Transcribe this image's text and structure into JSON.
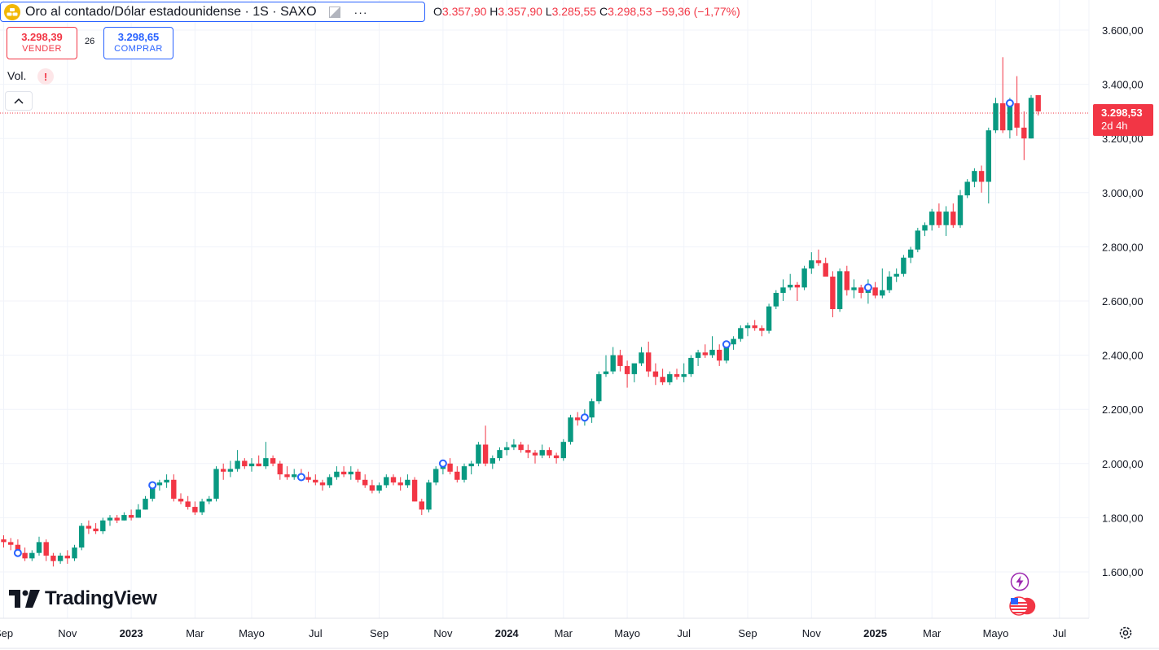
{
  "header": {
    "symbol_title": "Oro al contado/Dólar estadounidense · 1S · SAXO",
    "more_label": "···",
    "ohlc": {
      "o_key": "O",
      "o_val": "3.357,90",
      "h_key": "H",
      "h_val": "3.357,90",
      "l_key": "L",
      "l_val": "3.285,55",
      "c_key": "C",
      "c_val": "3.298,53",
      "change": "−59,36 (−1,77%)"
    }
  },
  "trade": {
    "sell_price": "3.298,39",
    "sell_label": "VENDER",
    "spread": "26",
    "buy_price": "3.298,65",
    "buy_label": "COMPRAR"
  },
  "volume": {
    "label": "Vol.",
    "warning": "!"
  },
  "last_price": {
    "price": "3.298,53",
    "countdown": "2d 4h"
  },
  "branding": {
    "logo_text": "TradingView"
  },
  "colors": {
    "up": "#089981",
    "down": "#f23645",
    "grid": "#f0f3fa",
    "accent": "#2962ff"
  },
  "chart_data": {
    "type": "candlestick",
    "interval": "1S",
    "y_range": [
      1460,
      3660
    ],
    "y_ticks": [
      {
        "value": 1600,
        "label": "1.600,00"
      },
      {
        "value": 1800,
        "label": "1.800,00"
      },
      {
        "value": 2000,
        "label": "2.000,00"
      },
      {
        "value": 2200,
        "label": "2.200,00"
      },
      {
        "value": 2400,
        "label": "2.400,00"
      },
      {
        "value": 2600,
        "label": "2.600,00"
      },
      {
        "value": 2800,
        "label": "2.800,00"
      },
      {
        "value": 3000,
        "label": "3.000,00"
      },
      {
        "value": 3200,
        "label": "3.200,00"
      },
      {
        "value": 3400,
        "label": "3.400,00"
      },
      {
        "value": 3600,
        "label": "3.600,00"
      }
    ],
    "x_ticks": [
      {
        "week": 0,
        "label": "Sep",
        "year": false
      },
      {
        "week": 9,
        "label": "Nov",
        "year": false
      },
      {
        "week": 18,
        "label": "2023",
        "year": true
      },
      {
        "week": 27,
        "label": "Mar",
        "year": false
      },
      {
        "week": 35,
        "label": "Mayo",
        "year": false
      },
      {
        "week": 44,
        "label": "Jul",
        "year": false
      },
      {
        "week": 53,
        "label": "Sep",
        "year": false
      },
      {
        "week": 62,
        "label": "Nov",
        "year": false
      },
      {
        "week": 71,
        "label": "2024",
        "year": true
      },
      {
        "week": 79,
        "label": "Mar",
        "year": false
      },
      {
        "week": 88,
        "label": "Mayo",
        "year": false
      },
      {
        "week": 96,
        "label": "Jul",
        "year": false
      },
      {
        "week": 105,
        "label": "Sep",
        "year": false
      },
      {
        "week": 114,
        "label": "Nov",
        "year": false
      },
      {
        "week": 123,
        "label": "2025",
        "year": true
      },
      {
        "week": 131,
        "label": "Mar",
        "year": false
      },
      {
        "week": 140,
        "label": "Mayo",
        "year": false
      },
      {
        "week": 149,
        "label": "Jul",
        "year": false
      }
    ],
    "candles": [
      [
        1720,
        1735,
        1690,
        1710
      ],
      [
        1710,
        1725,
        1680,
        1700
      ],
      [
        1700,
        1720,
        1660,
        1670
      ],
      [
        1670,
        1690,
        1640,
        1650
      ],
      [
        1650,
        1680,
        1640,
        1670
      ],
      [
        1670,
        1730,
        1660,
        1710
      ],
      [
        1710,
        1720,
        1640,
        1660
      ],
      [
        1660,
        1670,
        1620,
        1640
      ],
      [
        1640,
        1670,
        1630,
        1660
      ],
      [
        1660,
        1680,
        1630,
        1650
      ],
      [
        1650,
        1700,
        1640,
        1690
      ],
      [
        1690,
        1780,
        1680,
        1770
      ],
      [
        1770,
        1790,
        1740,
        1760
      ],
      [
        1760,
        1780,
        1740,
        1750
      ],
      [
        1750,
        1800,
        1740,
        1790
      ],
      [
        1790,
        1810,
        1770,
        1800
      ],
      [
        1800,
        1810,
        1780,
        1790
      ],
      [
        1790,
        1820,
        1790,
        1810
      ],
      [
        1810,
        1830,
        1790,
        1800
      ],
      [
        1800,
        1850,
        1800,
        1830
      ],
      [
        1830,
        1880,
        1830,
        1870
      ],
      [
        1870,
        1930,
        1860,
        1920
      ],
      [
        1920,
        1940,
        1900,
        1930
      ],
      [
        1930,
        1960,
        1910,
        1940
      ],
      [
        1940,
        1960,
        1860,
        1870
      ],
      [
        1870,
        1890,
        1850,
        1860
      ],
      [
        1860,
        1880,
        1830,
        1840
      ],
      [
        1840,
        1860,
        1810,
        1820
      ],
      [
        1820,
        1870,
        1810,
        1860
      ],
      [
        1860,
        1880,
        1850,
        1870
      ],
      [
        1870,
        1990,
        1860,
        1980
      ],
      [
        1980,
        2000,
        1940,
        1970
      ],
      [
        1970,
        2010,
        1950,
        1980
      ],
      [
        1980,
        2050,
        1970,
        2010
      ],
      [
        2010,
        2020,
        1980,
        1990
      ],
      [
        1990,
        2020,
        1970,
        2000
      ],
      [
        2000,
        2030,
        1990,
        1990
      ],
      [
        1990,
        2080,
        1980,
        2020
      ],
      [
        2020,
        2030,
        1990,
        2000
      ],
      [
        2000,
        2010,
        1940,
        1960
      ],
      [
        1960,
        1990,
        1940,
        1950
      ],
      [
        1950,
        1980,
        1940,
        1960
      ],
      [
        1960,
        1980,
        1940,
        1950
      ],
      [
        1950,
        1970,
        1930,
        1940
      ],
      [
        1940,
        1960,
        1920,
        1930
      ],
      [
        1930,
        1940,
        1900,
        1920
      ],
      [
        1920,
        1960,
        1910,
        1950
      ],
      [
        1950,
        1990,
        1940,
        1970
      ],
      [
        1970,
        1990,
        1950,
        1960
      ],
      [
        1960,
        1990,
        1940,
        1970
      ],
      [
        1970,
        1980,
        1930,
        1940
      ],
      [
        1940,
        1960,
        1910,
        1920
      ],
      [
        1920,
        1940,
        1890,
        1900
      ],
      [
        1900,
        1930,
        1890,
        1920
      ],
      [
        1920,
        1960,
        1910,
        1950
      ],
      [
        1950,
        1960,
        1920,
        1930
      ],
      [
        1930,
        1950,
        1900,
        1920
      ],
      [
        1920,
        1960,
        1910,
        1940
      ],
      [
        1940,
        1950,
        1860,
        1860
      ],
      [
        1860,
        1870,
        1810,
        1830
      ],
      [
        1830,
        1940,
        1820,
        1930
      ],
      [
        1930,
        1990,
        1920,
        1980
      ],
      [
        1980,
        2010,
        1960,
        2000
      ],
      [
        2000,
        2020,
        1960,
        1970
      ],
      [
        1970,
        1990,
        1930,
        1940
      ],
      [
        1940,
        2000,
        1930,
        1990
      ],
      [
        1990,
        2010,
        1960,
        2000
      ],
      [
        2000,
        2080,
        1990,
        2070
      ],
      [
        2070,
        2140,
        1990,
        2000
      ],
      [
        2000,
        2030,
        1980,
        2020
      ],
      [
        2020,
        2060,
        2010,
        2050
      ],
      [
        2050,
        2080,
        2030,
        2060
      ],
      [
        2060,
        2090,
        2050,
        2070
      ],
      [
        2070,
        2080,
        2040,
        2050
      ],
      [
        2050,
        2070,
        2020,
        2040
      ],
      [
        2040,
        2050,
        2000,
        2030
      ],
      [
        2030,
        2070,
        2020,
        2050
      ],
      [
        2050,
        2060,
        2020,
        2030
      ],
      [
        2030,
        2040,
        2000,
        2020
      ],
      [
        2020,
        2090,
        2010,
        2080
      ],
      [
        2080,
        2180,
        2070,
        2170
      ],
      [
        2170,
        2190,
        2140,
        2160
      ],
      [
        2160,
        2200,
        2140,
        2170
      ],
      [
        2170,
        2240,
        2150,
        2230
      ],
      [
        2230,
        2340,
        2220,
        2330
      ],
      [
        2330,
        2400,
        2320,
        2340
      ],
      [
        2340,
        2430,
        2330,
        2400
      ],
      [
        2400,
        2420,
        2340,
        2360
      ],
      [
        2360,
        2380,
        2280,
        2330
      ],
      [
        2330,
        2360,
        2300,
        2370
      ],
      [
        2370,
        2430,
        2360,
        2410
      ],
      [
        2410,
        2450,
        2320,
        2340
      ],
      [
        2340,
        2370,
        2290,
        2320
      ],
      [
        2320,
        2350,
        2290,
        2300
      ],
      [
        2300,
        2340,
        2290,
        2330
      ],
      [
        2330,
        2350,
        2310,
        2320
      ],
      [
        2320,
        2370,
        2300,
        2330
      ],
      [
        2330,
        2400,
        2320,
        2390
      ],
      [
        2390,
        2420,
        2360,
        2410
      ],
      [
        2410,
        2440,
        2390,
        2400
      ],
      [
        2400,
        2470,
        2390,
        2420
      ],
      [
        2420,
        2440,
        2360,
        2380
      ],
      [
        2380,
        2450,
        2370,
        2440
      ],
      [
        2440,
        2470,
        2420,
        2460
      ],
      [
        2460,
        2510,
        2450,
        2500
      ],
      [
        2500,
        2520,
        2470,
        2510
      ],
      [
        2510,
        2530,
        2490,
        2500
      ],
      [
        2500,
        2510,
        2470,
        2490
      ],
      [
        2490,
        2590,
        2480,
        2580
      ],
      [
        2580,
        2640,
        2570,
        2630
      ],
      [
        2630,
        2680,
        2600,
        2650
      ],
      [
        2650,
        2700,
        2640,
        2660
      ],
      [
        2660,
        2670,
        2600,
        2650
      ],
      [
        2650,
        2730,
        2640,
        2720
      ],
      [
        2720,
        2780,
        2700,
        2750
      ],
      [
        2750,
        2790,
        2730,
        2740
      ],
      [
        2740,
        2760,
        2700,
        2690
      ],
      [
        2690,
        2710,
        2540,
        2570
      ],
      [
        2570,
        2720,
        2560,
        2710
      ],
      [
        2710,
        2730,
        2620,
        2640
      ],
      [
        2640,
        2680,
        2610,
        2650
      ],
      [
        2650,
        2660,
        2610,
        2630
      ],
      [
        2630,
        2680,
        2590,
        2650
      ],
      [
        2650,
        2670,
        2610,
        2620
      ],
      [
        2620,
        2720,
        2610,
        2640
      ],
      [
        2640,
        2710,
        2630,
        2690
      ],
      [
        2690,
        2720,
        2670,
        2700
      ],
      [
        2700,
        2770,
        2690,
        2760
      ],
      [
        2760,
        2800,
        2740,
        2790
      ],
      [
        2790,
        2870,
        2780,
        2860
      ],
      [
        2860,
        2890,
        2840,
        2880
      ],
      [
        2880,
        2940,
        2860,
        2930
      ],
      [
        2930,
        2960,
        2870,
        2880
      ],
      [
        2880,
        2950,
        2840,
        2930
      ],
      [
        2930,
        2960,
        2870,
        2880
      ],
      [
        2880,
        3010,
        2870,
        2990
      ],
      [
        2990,
        3050,
        2980,
        3040
      ],
      [
        3040,
        3090,
        3020,
        3080
      ],
      [
        3080,
        3100,
        3000,
        3040
      ],
      [
        3040,
        3240,
        2960,
        3230
      ],
      [
        3230,
        3350,
        3220,
        3330
      ],
      [
        3330,
        3500,
        3220,
        3230
      ],
      [
        3230,
        3350,
        3200,
        3330
      ],
      [
        3330,
        3430,
        3210,
        3240
      ],
      [
        3240,
        3300,
        3120,
        3200
      ],
      [
        3200,
        3360,
        3200,
        3350
      ],
      [
        3360,
        3360,
        3285,
        3300
      ]
    ]
  }
}
